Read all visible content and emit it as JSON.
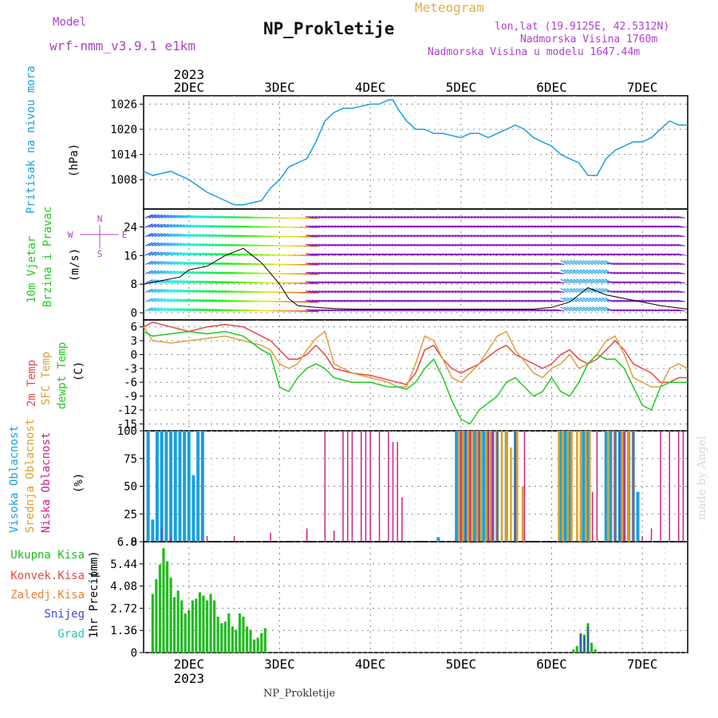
{
  "header": {
    "model_label": "Model",
    "model_name": "wrf-nmm_v3.9.1 e1km",
    "title": "NP_Prokletije",
    "meteogram_label": "Meteogram",
    "lonlat": "lon,lat (19.9125E, 42.5312N)",
    "altitude": "Nadmorska Visina 1760m",
    "model_altitude": "Nadmorska Visina u modelu 1647.44m"
  },
  "footer": {
    "station": "NP_Prokletije",
    "credit": "made by Angel"
  },
  "colors": {
    "pressure": "#1a9fe0",
    "t2m": "#e84848",
    "tsfc": "#dda040",
    "dewpt": "#22cc22",
    "cloud_high": "#1a9fe0",
    "cloud_mid": "#dda020",
    "cloud_low": "#cc2288",
    "precip_total": "#22bb22",
    "precip_conv": "#e84848",
    "precip_frozen": "#f08030",
    "precip_snow": "#4444dd",
    "precip_graupel": "#22c8b8",
    "label_purple": "#b040d0",
    "label_gold": "#dcb040"
  },
  "chart_data": [
    {
      "type": "line",
      "name": "pressure",
      "ylabel": "Pritisak na nivou mora",
      "unit": "(hPa)",
      "yticks": [
        1008,
        1014,
        1020,
        1026
      ],
      "ylim": [
        1001,
        1028
      ],
      "x_days": [
        "2DEC",
        "3DEC",
        "4DEC",
        "5DEC",
        "6DEC",
        "7DEC"
      ],
      "year": "2023",
      "x_start": 1.5,
      "x_end": 7.5,
      "series": [
        {
          "x": [
            1.5,
            1.6,
            1.8,
            2.0,
            2.2,
            2.4,
            2.5,
            2.6,
            2.8,
            2.9,
            3.0,
            3.1,
            3.2,
            3.3,
            3.4,
            3.5,
            3.6,
            3.7,
            3.8,
            4.0,
            4.1,
            4.2,
            4.25,
            4.3,
            4.4,
            4.5,
            4.6,
            4.7,
            4.8,
            5.0,
            5.1,
            5.2,
            5.3,
            5.4,
            5.5,
            5.6,
            5.7,
            5.8,
            5.9,
            6.0,
            6.1,
            6.2,
            6.3,
            6.4,
            6.5,
            6.6,
            6.7,
            6.8,
            6.9,
            7.0,
            7.1,
            7.2,
            7.3,
            7.4,
            7.5
          ],
          "y": [
            1010,
            1009,
            1010,
            1008,
            1005,
            1003,
            1002,
            1002,
            1003,
            1006,
            1008,
            1011,
            1012,
            1013,
            1017,
            1022,
            1024,
            1025,
            1025,
            1026,
            1026,
            1027,
            1027,
            1025,
            1022,
            1020,
            1020,
            1019,
            1019,
            1018,
            1019,
            1019,
            1018,
            1019,
            1020,
            1021,
            1020,
            1018,
            1017,
            1016,
            1014,
            1013,
            1012,
            1009,
            1009,
            1013,
            1015,
            1016,
            1017,
            1017,
            1018,
            1020,
            1022,
            1021,
            1021
          ]
        }
      ]
    },
    {
      "type": "line",
      "name": "wind",
      "ylabel": "10m Vjetar Brzina i Pravac",
      "unit": "(m/s)",
      "compass": {
        "n": "N",
        "s": "S",
        "e": "E",
        "w": "W"
      },
      "yticks": [
        0,
        8,
        16,
        24
      ],
      "ylim": [
        -2,
        29
      ],
      "series": [
        {
          "x": [
            1.5,
            1.7,
            1.9,
            2.0,
            2.2,
            2.4,
            2.5,
            2.6,
            2.7,
            2.8,
            2.9,
            3.0,
            3.1,
            3.2,
            3.4,
            3.6,
            3.8,
            4.0,
            4.4,
            4.8,
            5.0,
            5.2,
            5.5,
            5.8,
            6.0,
            6.2,
            6.3,
            6.4,
            6.5,
            6.6,
            6.8,
            7.0,
            7.2,
            7.5
          ],
          "y": [
            8,
            9,
            10,
            12,
            13,
            16,
            17,
            18,
            16,
            14,
            11,
            8,
            4,
            2,
            1.5,
            1.2,
            1,
            1,
            1,
            1,
            1,
            1,
            1,
            1,
            1.5,
            3,
            5,
            7,
            6,
            5,
            4,
            3,
            2,
            1
          ]
        }
      ]
    },
    {
      "type": "line",
      "name": "temperature",
      "ylabels": [
        "2m Temp",
        "SFC Temp",
        "dewpt Temp"
      ],
      "unit": "(C)",
      "yticks": [
        -15,
        -12,
        -9,
        -6,
        -3,
        0,
        3,
        6
      ],
      "ylim": [
        -16.5,
        7.5
      ],
      "series": [
        {
          "name": "2m Temp",
          "x": [
            1.5,
            1.6,
            1.8,
            2.0,
            2.2,
            2.4,
            2.6,
            2.8,
            2.9,
            3.0,
            3.1,
            3.2,
            3.3,
            3.4,
            3.5,
            3.6,
            3.8,
            4.0,
            4.2,
            4.3,
            4.4,
            4.5,
            4.6,
            4.7,
            4.8,
            4.9,
            5.0,
            5.2,
            5.4,
            5.5,
            5.6,
            5.8,
            5.9,
            6.0,
            6.1,
            6.2,
            6.3,
            6.4,
            6.5,
            6.6,
            6.7,
            6.8,
            6.9,
            7.0,
            7.1,
            7.2,
            7.3,
            7.4,
            7.5
          ],
          "y": [
            6,
            7,
            6,
            5,
            6,
            6.5,
            6,
            4,
            3,
            1,
            -1,
            -1,
            0,
            2,
            0,
            -3,
            -4,
            -4.5,
            -5.5,
            -6,
            -6.5,
            -4,
            1,
            2,
            -1,
            -3,
            -4,
            -2,
            1,
            2,
            0,
            -2,
            -3,
            -2,
            0,
            1,
            -1,
            -2,
            -1,
            1,
            3,
            1,
            -2,
            -3,
            -4,
            -6,
            -6,
            -5,
            -5
          ]
        },
        {
          "name": "SFC Temp",
          "x": [
            1.5,
            1.6,
            1.8,
            2.0,
            2.2,
            2.4,
            2.6,
            2.8,
            2.9,
            3.0,
            3.1,
            3.2,
            3.3,
            3.4,
            3.5,
            3.6,
            3.8,
            4.0,
            4.2,
            4.3,
            4.4,
            4.5,
            4.6,
            4.7,
            4.8,
            4.9,
            5.0,
            5.2,
            5.4,
            5.5,
            5.6,
            5.8,
            5.9,
            6.0,
            6.1,
            6.2,
            6.3,
            6.4,
            6.5,
            6.6,
            6.7,
            6.8,
            6.9,
            7.0,
            7.1,
            7.2,
            7.3,
            7.4,
            7.5
          ],
          "y": [
            6,
            3,
            2.5,
            3,
            3.5,
            4,
            3,
            2,
            1,
            -2,
            -3,
            -2,
            1,
            3.5,
            5,
            -2,
            -4,
            -5,
            -6,
            -7,
            -7,
            -2,
            4,
            3,
            -1,
            -5,
            -6,
            -2,
            4,
            5,
            1,
            -4,
            -5,
            -3,
            -2,
            0,
            -3,
            -2,
            0,
            3,
            4,
            0,
            -5,
            -6,
            -7,
            -7,
            -3,
            -2,
            -3
          ]
        },
        {
          "name": "dewpt Temp",
          "x": [
            1.5,
            1.6,
            1.8,
            2.0,
            2.2,
            2.4,
            2.6,
            2.8,
            2.9,
            3.0,
            3.1,
            3.2,
            3.3,
            3.4,
            3.5,
            3.6,
            3.8,
            4.0,
            4.2,
            4.3,
            4.4,
            4.5,
            4.6,
            4.7,
            4.8,
            4.9,
            5.0,
            5.1,
            5.2,
            5.4,
            5.5,
            5.6,
            5.8,
            5.9,
            6.0,
            6.1,
            6.2,
            6.3,
            6.4,
            6.5,
            6.6,
            6.7,
            6.8,
            6.9,
            7.0,
            7.1,
            7.2,
            7.3,
            7.4,
            7.5
          ],
          "y": [
            5,
            4,
            4.5,
            5,
            4.5,
            5,
            4,
            1,
            0,
            -7,
            -8,
            -5,
            -3,
            -2,
            -3,
            -5,
            -6,
            -6,
            -7,
            -7,
            -7.5,
            -6,
            -3,
            -1,
            -5,
            -10,
            -14,
            -15,
            -12,
            -9,
            -6,
            -5,
            -9,
            -8,
            -5,
            -8,
            -9,
            -6,
            -2,
            0,
            -1,
            -1,
            -3,
            -7,
            -11,
            -12,
            -7,
            -6,
            -6,
            -6
          ]
        }
      ]
    },
    {
      "type": "bar",
      "name": "clouds",
      "ylabels": [
        "Visoka Oblacnost",
        "Srednja Oblacnost",
        "Niska Oblacnost"
      ],
      "unit": "(%)",
      "yticks": [
        0,
        25,
        50,
        75,
        100
      ],
      "ylim": [
        0,
        100
      ],
      "series": [
        {
          "name": "Visoka Oblacnost",
          "x": [
            1.55,
            1.6,
            1.65,
            1.7,
            1.75,
            1.8,
            1.85,
            1.9,
            1.95,
            2.0,
            2.05,
            2.1,
            2.15,
            4.75,
            4.95,
            5.0,
            5.05,
            5.1,
            5.15,
            5.2,
            5.25,
            5.3,
            5.35,
            5.4,
            5.5,
            5.6,
            6.1,
            6.15,
            6.2,
            6.35,
            6.4,
            6.6,
            6.65,
            6.7,
            6.75,
            6.8,
            6.85,
            6.9,
            6.95
          ],
          "values": [
            100,
            20,
            100,
            100,
            100,
            100,
            100,
            100,
            100,
            100,
            60,
            100,
            100,
            4,
            100,
            100,
            100,
            100,
            100,
            100,
            100,
            100,
            100,
            100,
            100,
            100,
            100,
            100,
            100,
            100,
            100,
            100,
            100,
            100,
            100,
            100,
            100,
            100,
            45
          ]
        },
        {
          "name": "Srednja Oblacnost",
          "x": [
            4.98,
            5.02,
            5.08,
            5.12,
            5.18,
            5.22,
            5.28,
            5.32,
            5.4,
            5.45,
            5.5,
            5.55,
            5.62,
            5.68,
            6.08,
            6.12,
            6.18,
            6.22,
            6.28,
            6.32,
            6.38,
            6.42,
            6.62,
            6.7,
            6.78,
            6.85,
            6.9
          ],
          "values": [
            100,
            100,
            100,
            100,
            100,
            100,
            100,
            100,
            100,
            100,
            100,
            85,
            100,
            50,
            100,
            100,
            100,
            100,
            100,
            100,
            100,
            100,
            100,
            100,
            100,
            100,
            100
          ]
        },
        {
          "name": "Niska Oblacnost",
          "x": [
            1.7,
            1.8,
            2.2,
            2.5,
            2.9,
            3.3,
            3.5,
            3.6,
            3.7,
            3.75,
            3.8,
            3.9,
            3.95,
            4.0,
            4.1,
            4.2,
            4.25,
            4.3,
            4.35,
            5.0,
            5.05,
            5.1,
            5.2,
            5.3,
            5.35,
            5.4,
            5.6,
            5.7,
            6.45,
            6.5,
            6.7,
            6.75,
            6.8,
            6.9,
            7.0,
            7.1,
            7.2,
            7.3,
            7.4,
            7.45
          ],
          "values": [
            12,
            4,
            5,
            5,
            8,
            12,
            100,
            10,
            100,
            100,
            100,
            100,
            100,
            100,
            100,
            100,
            90,
            90,
            40,
            100,
            100,
            100,
            100,
            100,
            100,
            100,
            100,
            100,
            45,
            100,
            100,
            100,
            100,
            100,
            5,
            12,
            100,
            100,
            100,
            100
          ]
        }
      ]
    },
    {
      "type": "bar",
      "name": "precip",
      "labels": [
        "Ukupna Kisa",
        "Konvek.Kisa",
        "Zaledj.Kisa",
        "Snijeg",
        "Grad"
      ],
      "ylabel": "1hr Precip",
      "unit": "(mm)",
      "yticks": [
        0,
        1.36,
        2.72,
        4.08,
        5.44,
        6.8
      ],
      "ylim": [
        0,
        6.8
      ],
      "series": [
        {
          "name": "Ukupna Kisa",
          "x": [
            1.6,
            1.64,
            1.68,
            1.72,
            1.76,
            1.8,
            1.84,
            1.88,
            1.92,
            1.96,
            2.0,
            2.04,
            2.08,
            2.12,
            2.16,
            2.2,
            2.24,
            2.28,
            2.32,
            2.36,
            2.4,
            2.44,
            2.48,
            2.52,
            2.56,
            2.6,
            2.64,
            2.68,
            2.72,
            2.76,
            2.8,
            2.84,
            6.24,
            6.28,
            6.32,
            6.36,
            6.4,
            6.44,
            6.48
          ],
          "values": [
            3.6,
            4.5,
            5.4,
            6.4,
            5.6,
            4.6,
            3.4,
            3.8,
            3.2,
            2.4,
            2.6,
            3.2,
            3.3,
            3.7,
            3.5,
            3.2,
            3.6,
            3.2,
            2.2,
            1.8,
            1.9,
            2.4,
            1.6,
            1.4,
            2.4,
            2.2,
            1.6,
            1.4,
            0.8,
            0.9,
            1.2,
            1.5,
            0.2,
            0.4,
            1.2,
            1.1,
            1.8,
            0.6,
            0.2
          ]
        },
        {
          "name": "Snijeg",
          "x": [
            6.32,
            6.36,
            6.4
          ],
          "values": [
            1.1,
            1.0,
            1.6
          ]
        }
      ]
    }
  ]
}
